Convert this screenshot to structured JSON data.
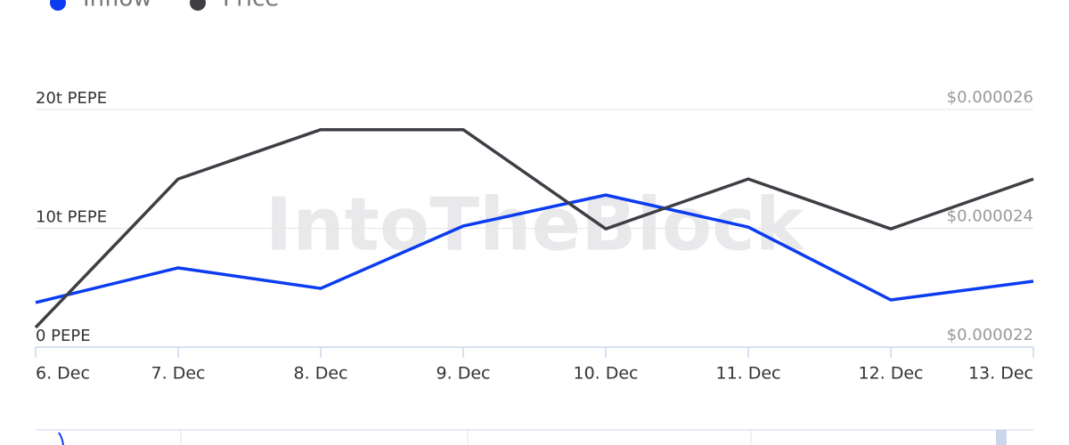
{
  "chart_data": {
    "type": "line",
    "watermark": "IntoTheBlock",
    "categories": [
      "6. Dec",
      "7. Dec",
      "8. Dec",
      "9. Dec",
      "10. Dec",
      "11. Dec",
      "12. Dec",
      "13. Dec"
    ],
    "series": [
      {
        "name": "Inflow",
        "color": "#0b3cf0",
        "values": [
          3.75,
          6.67,
          4.94,
          10.19,
          12.8,
          10.1,
          3.97,
          5.54
        ]
      },
      {
        "name": "Price",
        "color": "#3d3f44",
        "axis": "y2",
        "values": [
          2.233e-05,
          2.483e-05,
          2.566e-05,
          2.566e-05,
          2.399e-05,
          2.483e-05,
          2.399e-05,
          2.483e-05
        ]
      }
    ],
    "ylim": [
      0,
      20
    ],
    "yticks": [
      {
        "value": 0,
        "label": "0 PEPE"
      },
      {
        "value": 10,
        "label": "10t PEPE"
      },
      {
        "value": 20,
        "label": "20t PEPE"
      }
    ],
    "y2lim": [
      2.2e-05,
      2.6e-05
    ],
    "y2ticks": [
      {
        "value": 2.2e-05,
        "label": "$0.000022"
      },
      {
        "value": 2.4e-05,
        "label": "$0.000024"
      },
      {
        "value": 2.6e-05,
        "label": "$0.000026"
      }
    ],
    "grid": true,
    "legend": "top-left"
  }
}
